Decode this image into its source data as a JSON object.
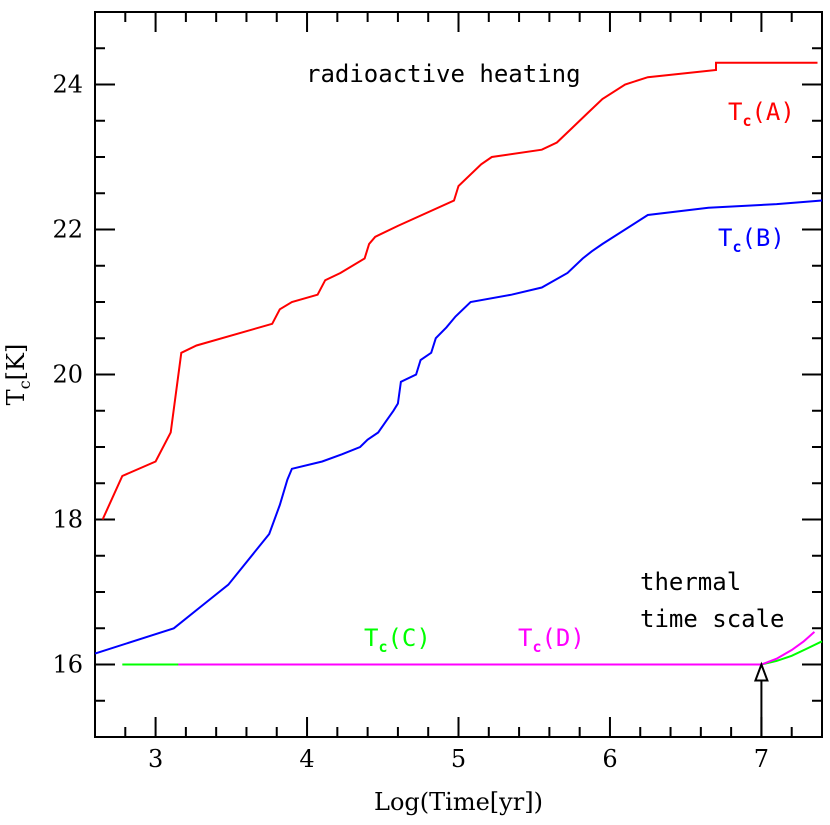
{
  "chart_data": {
    "type": "line",
    "xlabel": "Log(Time[yr])",
    "ylabel": "T",
    "ylabel_sub": "c",
    "ylabel_unit": "[K]",
    "xlim": [
      2.6,
      7.4
    ],
    "ylim": [
      15,
      25
    ],
    "x_ticks": [
      3,
      4,
      5,
      6,
      7
    ],
    "x_tick_labels": [
      "3",
      "4",
      "5",
      "6",
      "7"
    ],
    "y_ticks": [
      16,
      18,
      20,
      22,
      24
    ],
    "y_tick_labels": [
      "16",
      "18",
      "20",
      "22",
      "24"
    ],
    "grid": false,
    "series": [
      {
        "label_main": "T",
        "label_sub": "c",
        "label_paren": "(A)",
        "color": "#ff0000",
        "points": [
          [
            2.65,
            18.0
          ],
          [
            2.78,
            18.6
          ],
          [
            3.0,
            18.8
          ],
          [
            3.1,
            19.2
          ],
          [
            3.17,
            20.3
          ],
          [
            3.27,
            20.4
          ],
          [
            3.77,
            20.7
          ],
          [
            3.82,
            20.9
          ],
          [
            3.9,
            21.0
          ],
          [
            4.07,
            21.1
          ],
          [
            4.12,
            21.3
          ],
          [
            4.22,
            21.4
          ],
          [
            4.38,
            21.6
          ],
          [
            4.41,
            21.8
          ],
          [
            4.45,
            21.9
          ],
          [
            4.6,
            22.05
          ],
          [
            4.97,
            22.4
          ],
          [
            5.0,
            22.6
          ],
          [
            5.15,
            22.9
          ],
          [
            5.22,
            23.0
          ],
          [
            5.55,
            23.1
          ],
          [
            5.65,
            23.2
          ],
          [
            5.75,
            23.4
          ],
          [
            5.85,
            23.6
          ],
          [
            5.95,
            23.8
          ],
          [
            6.1,
            24.0
          ],
          [
            6.25,
            24.1
          ],
          [
            6.7,
            24.2
          ],
          [
            6.7,
            24.3
          ],
          [
            7.37,
            24.3
          ]
        ]
      },
      {
        "label_main": "T",
        "label_sub": "c",
        "label_paren": "(B)",
        "color": "#0000ff",
        "points": [
          [
            2.6,
            16.15
          ],
          [
            3.12,
            16.5
          ],
          [
            3.3,
            16.8
          ],
          [
            3.48,
            17.1
          ],
          [
            3.75,
            17.8
          ],
          [
            3.82,
            18.2
          ],
          [
            3.87,
            18.55
          ],
          [
            3.9,
            18.7
          ],
          [
            4.1,
            18.8
          ],
          [
            4.23,
            18.9
          ],
          [
            4.35,
            19.0
          ],
          [
            4.4,
            19.1
          ],
          [
            4.47,
            19.2
          ],
          [
            4.52,
            19.35
          ],
          [
            4.57,
            19.5
          ],
          [
            4.6,
            19.6
          ],
          [
            4.62,
            19.9
          ],
          [
            4.72,
            20.0
          ],
          [
            4.75,
            20.2
          ],
          [
            4.82,
            20.3
          ],
          [
            4.85,
            20.5
          ],
          [
            4.92,
            20.65
          ],
          [
            4.98,
            20.8
          ],
          [
            5.08,
            21.0
          ],
          [
            5.35,
            21.1
          ],
          [
            5.55,
            21.2
          ],
          [
            5.72,
            21.4
          ],
          [
            5.82,
            21.6
          ],
          [
            5.88,
            21.7
          ],
          [
            5.95,
            21.8
          ],
          [
            6.25,
            22.2
          ],
          [
            6.65,
            22.3
          ],
          [
            7.1,
            22.35
          ],
          [
            7.4,
            22.4
          ]
        ]
      },
      {
        "label_main": "T",
        "label_sub": "c",
        "label_paren": "(C)",
        "color": "#00ff00",
        "points": [
          [
            2.78,
            16.0
          ],
          [
            3.15,
            16.0
          ],
          [
            6.95,
            16.0
          ],
          [
            7.0,
            16.0
          ],
          [
            7.1,
            16.05
          ],
          [
            7.2,
            16.12
          ],
          [
            7.3,
            16.22
          ],
          [
            7.4,
            16.32
          ]
        ]
      },
      {
        "label_main": "T",
        "label_sub": "c",
        "label_paren": "(D)",
        "color": "#ff00ff",
        "points": [
          [
            3.15,
            16.0
          ],
          [
            7.0,
            16.0
          ],
          [
            7.1,
            16.08
          ],
          [
            7.2,
            16.2
          ],
          [
            7.28,
            16.32
          ],
          [
            7.35,
            16.45
          ]
        ]
      }
    ],
    "annotations": {
      "radioactive": "radioactive heating",
      "thermal_line1": "thermal",
      "thermal_line2": "time scale",
      "arrow_x": 7.0,
      "arrow_from_y": 15.0,
      "arrow_to_y": 16.0
    }
  }
}
